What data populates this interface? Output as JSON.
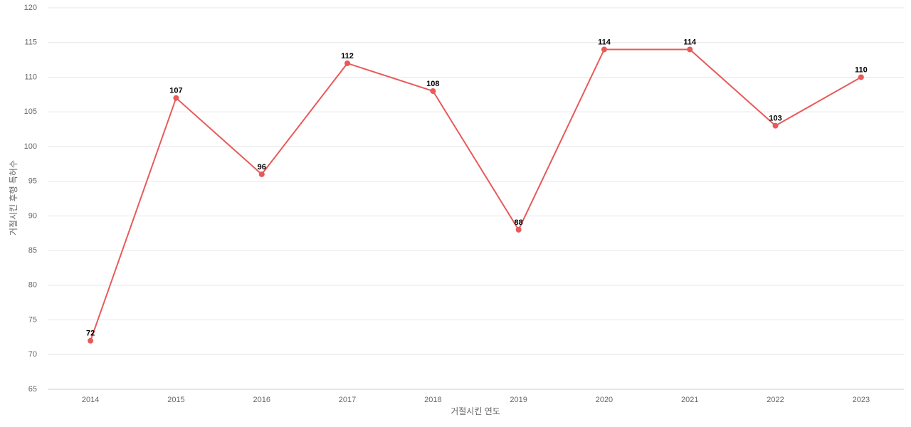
{
  "chart_data": {
    "type": "line",
    "x_label": "거절시킨 연도",
    "y_label": "거절시킨 후행 특허수",
    "categories": [
      "2014",
      "2015",
      "2016",
      "2017",
      "2018",
      "2019",
      "2020",
      "2021",
      "2022",
      "2023"
    ],
    "series": [
      {
        "name": "거절시킨 후행 특허수",
        "color": "#e85a5a",
        "values": [
          72,
          107,
          96,
          112,
          108,
          88,
          114,
          114,
          103,
          110
        ]
      }
    ],
    "ylim": [
      65,
      120
    ],
    "yticks": [
      65,
      70,
      75,
      80,
      85,
      90,
      95,
      100,
      105,
      110,
      115,
      120
    ],
    "grid": true
  }
}
